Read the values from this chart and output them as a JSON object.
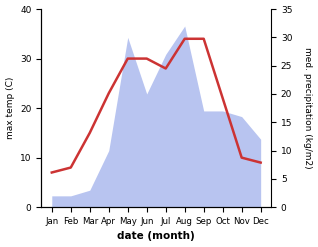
{
  "months": [
    "Jan",
    "Feb",
    "Mar",
    "Apr",
    "May",
    "Jun",
    "Jul",
    "Aug",
    "Sep",
    "Oct",
    "Nov",
    "Dec"
  ],
  "temp": [
    7,
    8,
    15,
    23,
    30,
    30,
    28,
    34,
    34,
    22,
    10,
    9
  ],
  "precip": [
    2,
    2,
    3,
    10,
    30,
    20,
    27,
    32,
    17,
    17,
    16,
    12
  ],
  "temp_color": "#cc3333",
  "precip_color": "#b8c4f0",
  "left_ylim": [
    0,
    40
  ],
  "right_ylim": [
    0,
    35
  ],
  "left_yticks": [
    0,
    10,
    20,
    30,
    40
  ],
  "right_yticks": [
    0,
    5,
    10,
    15,
    20,
    25,
    30,
    35
  ],
  "ylabel_left": "max temp (C)",
  "ylabel_right": "med. precipitation (kg/m2)",
  "xlabel": "date (month)",
  "background_color": "#ffffff"
}
